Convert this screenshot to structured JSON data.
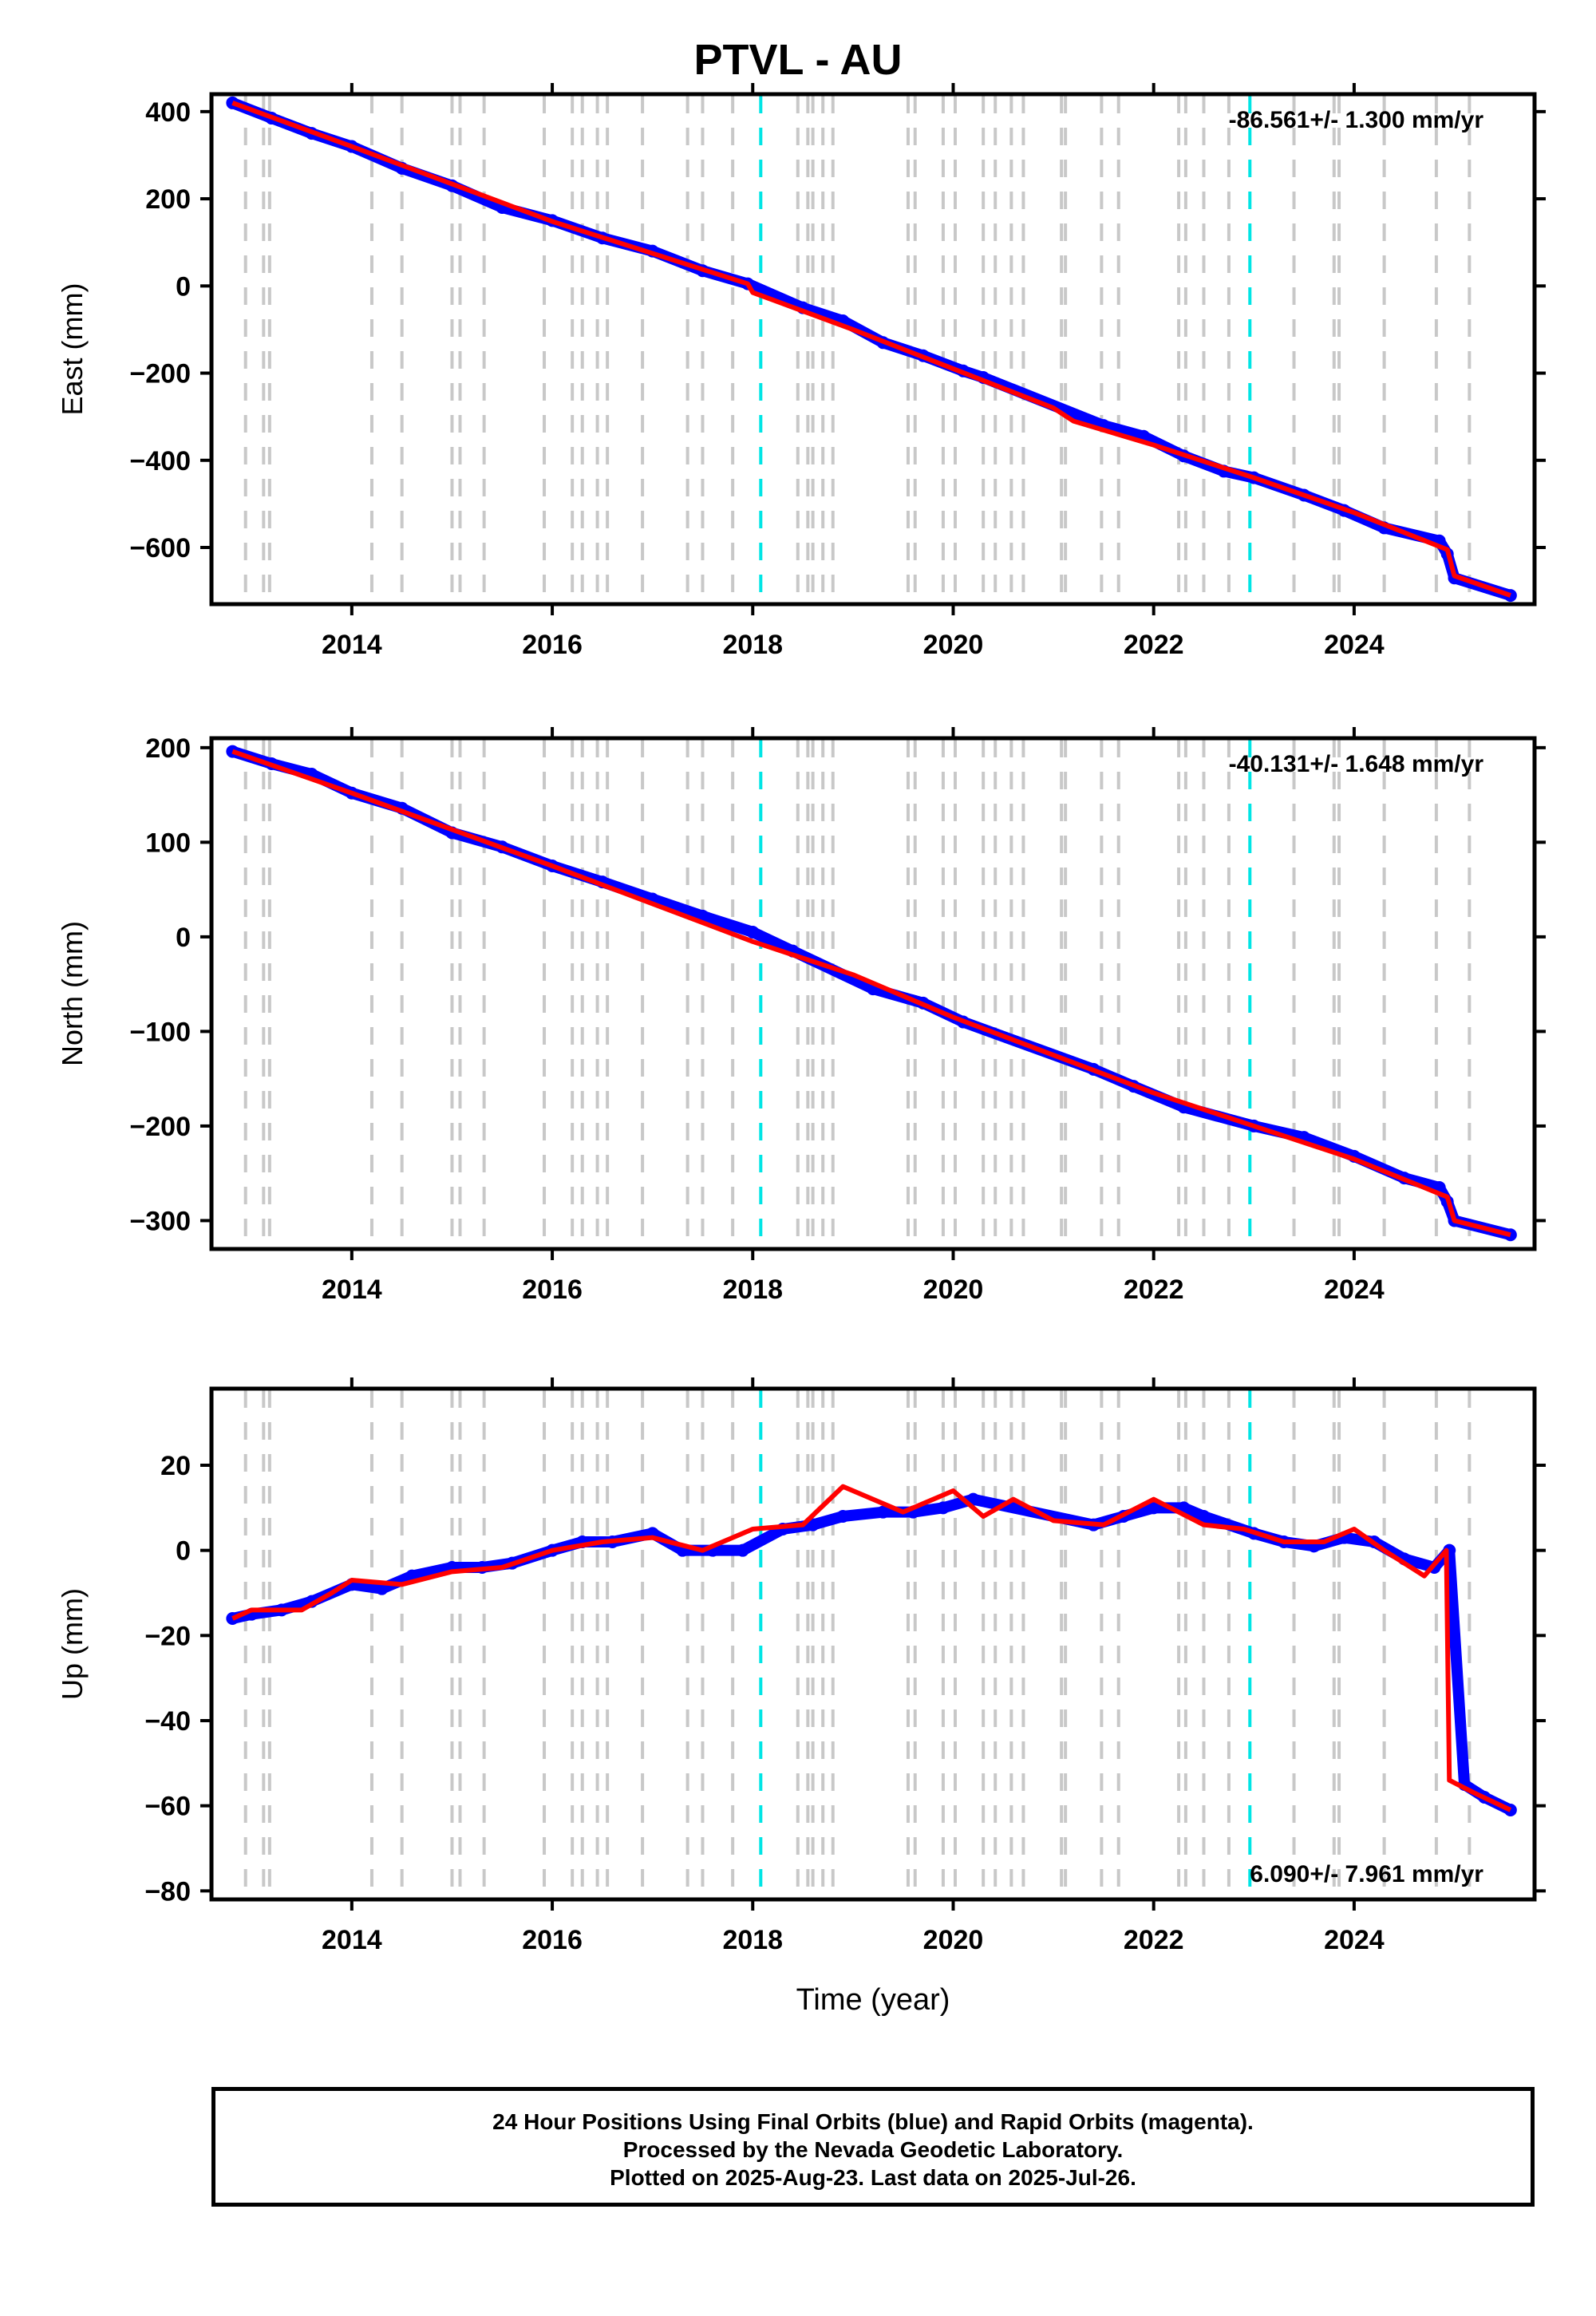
{
  "title": "PTVL - AU",
  "footer": {
    "line1": "24 Hour Positions Using Final Orbits (blue) and Rapid Orbits (magenta).",
    "line2": "Processed by the Nevada Geodetic Laboratory.",
    "line3": "Plotted on 2025-Aug-23. Last data on 2025-Jul-26."
  },
  "colors": {
    "data_points": "#0000ff",
    "model_fit": "#ff0000",
    "equipment_change_lines": "#c8c8c8",
    "earthquake_lines": "#00e5e5",
    "frame": "#000000"
  },
  "chart_data": [
    {
      "type": "scatter",
      "ylabel": "East (mm)",
      "xlabel": "",
      "xlim": [
        2012.6,
        2025.8
      ],
      "ylim": [
        -730,
        440
      ],
      "x_ticks": [
        2014,
        2016,
        2018,
        2020,
        2022,
        2024
      ],
      "x_tick_labels": [
        "2014",
        "2016",
        "2018",
        "2020",
        "2022",
        "2024"
      ],
      "y_ticks": [
        400,
        200,
        0,
        -200,
        -400,
        -600
      ],
      "y_tick_labels": [
        "400",
        "200",
        "0",
        "−200",
        "−400",
        "−600"
      ],
      "rate_label": "-86.561+/- 1.300 mm/yr",
      "rate_position": "top-right",
      "series": [
        {
          "style": "points",
          "color": "#0000ff",
          "x": [
            2012.81,
            2013.2,
            2013.6,
            2014.0,
            2014.5,
            2015.0,
            2015.5,
            2016.0,
            2016.5,
            2017.0,
            2017.5,
            2017.95,
            2018.5,
            2018.9,
            2019.3,
            2019.7,
            2020.1,
            2020.3,
            2021.5,
            2021.9,
            2022.3,
            2022.7,
            2023.0,
            2023.5,
            2023.9,
            2024.3,
            2024.85,
            2024.93,
            2025.0,
            2025.56
          ],
          "y": [
            420,
            385,
            350,
            320,
            270,
            230,
            180,
            150,
            110,
            80,
            35,
            5,
            -50,
            -80,
            -130,
            -160,
            -195,
            -210,
            -320,
            -345,
            -390,
            -425,
            -440,
            -480,
            -515,
            -555,
            -585,
            -615,
            -670,
            -710
          ]
        },
        {
          "style": "line",
          "color": "#ff0000",
          "x": [
            2012.81,
            2014.0,
            2016.0,
            2017.95,
            2018.0,
            2019.0,
            2020.0,
            2021.0,
            2021.2,
            2022.0,
            2023.0,
            2024.0,
            2024.93,
            2025.0,
            2025.56
          ],
          "y": [
            420,
            320,
            148,
            5,
            -15,
            -100,
            -190,
            -280,
            -310,
            -365,
            -440,
            -520,
            -605,
            -665,
            -710
          ]
        }
      ]
    },
    {
      "type": "scatter",
      "ylabel": "North (mm)",
      "xlabel": "",
      "xlim": [
        2012.6,
        2025.8
      ],
      "ylim": [
        -330,
        210
      ],
      "x_ticks": [
        2014,
        2016,
        2018,
        2020,
        2022,
        2024
      ],
      "x_tick_labels": [
        "2014",
        "2016",
        "2018",
        "2020",
        "2022",
        "2024"
      ],
      "y_ticks": [
        200,
        100,
        0,
        -100,
        -200,
        -300
      ],
      "y_tick_labels": [
        "200",
        "100",
        "0",
        "−100",
        "−200",
        "−300"
      ],
      "rate_label": "-40.131+/- 1.648 mm/yr",
      "rate_position": "top-right",
      "series": [
        {
          "style": "points",
          "color": "#0000ff",
          "x": [
            2012.81,
            2013.2,
            2013.6,
            2014.0,
            2014.5,
            2015.0,
            2015.5,
            2016.0,
            2016.5,
            2017.0,
            2017.5,
            2018.0,
            2018.4,
            2019.2,
            2019.7,
            2020.1,
            2021.4,
            2021.8,
            2022.3,
            2023.0,
            2023.5,
            2024.0,
            2024.5,
            2024.85,
            2024.93,
            2025.0,
            2025.56
          ],
          "y": [
            196,
            183,
            172,
            152,
            136,
            110,
            95,
            75,
            58,
            40,
            22,
            5,
            -15,
            -55,
            -70,
            -90,
            -140,
            -158,
            -180,
            -200,
            -212,
            -232,
            -255,
            -265,
            -280,
            -300,
            -315
          ]
        },
        {
          "style": "line",
          "color": "#ff0000",
          "x": [
            2012.81,
            2014.0,
            2016.0,
            2018.0,
            2019.0,
            2020.0,
            2021.0,
            2022.0,
            2023.0,
            2024.0,
            2024.93,
            2025.0,
            2025.56
          ],
          "y": [
            196,
            152,
            75,
            -5,
            -40,
            -85,
            -125,
            -165,
            -200,
            -235,
            -275,
            -300,
            -315
          ]
        }
      ]
    },
    {
      "type": "scatter",
      "ylabel": "Up (mm)",
      "xlabel": "Time (year)",
      "xlim": [
        2012.6,
        2025.8
      ],
      "ylim": [
        -82,
        38
      ],
      "x_ticks": [
        2014,
        2016,
        2018,
        2020,
        2022,
        2024
      ],
      "x_tick_labels": [
        "2014",
        "2016",
        "2018",
        "2020",
        "2022",
        "2024"
      ],
      "y_ticks": [
        20,
        0,
        -20,
        -40,
        -60,
        -80
      ],
      "y_tick_labels": [
        "20",
        "0",
        "−20",
        "−40",
        "−60",
        "−80"
      ],
      "rate_label": "6.090+/- 7.961 mm/yr",
      "rate_position": "bottom-right",
      "series": [
        {
          "style": "points",
          "color": "#0000ff",
          "x": [
            2012.81,
            2013.0,
            2013.3,
            2013.6,
            2014.0,
            2014.3,
            2014.6,
            2015.0,
            2015.3,
            2015.6,
            2016.0,
            2016.3,
            2016.6,
            2017.0,
            2017.3,
            2017.6,
            2017.9,
            2018.3,
            2018.6,
            2018.9,
            2019.3,
            2019.6,
            2019.9,
            2020.2,
            2021.4,
            2021.7,
            2022.0,
            2022.3,
            2022.5,
            2023.0,
            2023.3,
            2023.6,
            2023.9,
            2024.2,
            2024.5,
            2024.8,
            2024.95,
            2025.1,
            2025.3,
            2025.56
          ],
          "y": [
            -16,
            -15,
            -14,
            -12,
            -8,
            -9,
            -6,
            -4,
            -4,
            -3,
            0,
            2,
            2,
            4,
            0,
            0,
            0,
            5,
            6,
            8,
            9,
            9,
            10,
            12,
            6,
            8,
            10,
            10,
            8,
            4,
            2,
            1,
            3,
            2,
            -2,
            -4,
            0,
            -55,
            -58,
            -61
          ]
        },
        {
          "style": "line",
          "color": "#ff0000",
          "x": [
            2012.81,
            2013.0,
            2013.5,
            2013.8,
            2014.0,
            2014.5,
            2015.0,
            2015.5,
            2016.0,
            2016.5,
            2017.0,
            2017.5,
            2018.0,
            2018.5,
            2018.9,
            2019.5,
            2020.0,
            2020.3,
            2020.6,
            2021.0,
            2021.5,
            2022.0,
            2022.5,
            2022.9,
            2023.3,
            2023.7,
            2024.0,
            2024.3,
            2024.7,
            2024.92,
            2024.95,
            2025.2,
            2025.56
          ],
          "y": [
            -16,
            -14,
            -14,
            -10,
            -7,
            -8,
            -5,
            -4,
            0,
            2,
            3,
            0,
            5,
            6,
            15,
            9,
            14,
            8,
            12,
            7,
            6,
            12,
            6,
            5,
            2,
            2,
            5,
            0,
            -6,
            0,
            -54,
            -57,
            -61
          ]
        }
      ]
    }
  ]
}
